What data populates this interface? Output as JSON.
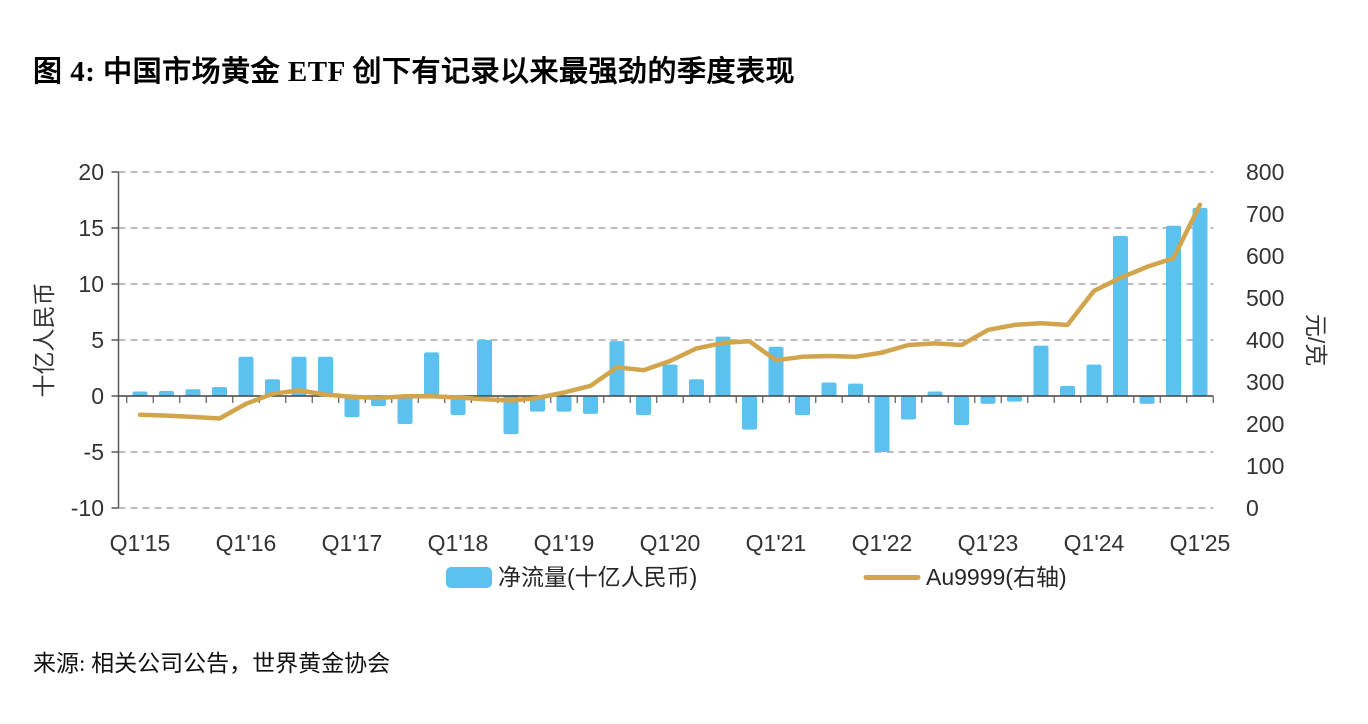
{
  "page": {
    "title": "图 4: 中国市场黄金 ETF 创下有记录以来最强劲的季度表现",
    "source": "来源: 相关公司公告，世界黄金协会"
  },
  "colors": {
    "bar": "#5BC2F0",
    "line": "#D2A54C",
    "grid": "#A6A6A6",
    "axis": "#595959",
    "zero_line": "#404040",
    "text": "#333333"
  },
  "chart_data": {
    "type": "bar+line",
    "title": "图 4: 中国市场黄金 ETF 创下有记录以来最强劲的季度表现",
    "categories": [
      "Q1'15",
      "Q2'15",
      "Q3'15",
      "Q4'15",
      "Q1'16",
      "Q2'16",
      "Q3'16",
      "Q4'16",
      "Q1'17",
      "Q2'17",
      "Q3'17",
      "Q4'17",
      "Q1'18",
      "Q2'18",
      "Q3'18",
      "Q4'18",
      "Q1'19",
      "Q2'19",
      "Q3'19",
      "Q4'19",
      "Q1'20",
      "Q2'20",
      "Q3'20",
      "Q4'20",
      "Q1'21",
      "Q2'21",
      "Q3'21",
      "Q4'21",
      "Q1'22",
      "Q2'22",
      "Q3'22",
      "Q4'22",
      "Q1'23",
      "Q2'23",
      "Q3'23",
      "Q4'23",
      "Q1'24",
      "Q2'24",
      "Q3'24",
      "Q4'24",
      "Q1'25"
    ],
    "series": [
      {
        "name": "净流量(十亿人民币)",
        "kind": "bar",
        "axis": "left",
        "color": "#5BC2F0",
        "values": [
          0.4,
          0.45,
          0.6,
          0.8,
          3.5,
          1.5,
          3.5,
          3.5,
          -1.9,
          -0.9,
          -2.5,
          3.9,
          -1.7,
          5.0,
          -3.4,
          -1.4,
          -1.4,
          -1.6,
          4.9,
          -1.7,
          2.8,
          1.5,
          5.3,
          -3.0,
          4.4,
          -1.7,
          1.2,
          1.1,
          -5.0,
          -2.1,
          0.4,
          -2.6,
          -0.7,
          -0.5,
          4.5,
          0.9,
          2.8,
          14.3,
          -0.7,
          15.2,
          16.8
        ]
      },
      {
        "name": "Au9999(右轴)",
        "kind": "line",
        "axis": "right",
        "color": "#D2A54C",
        "values": [
          222,
          220,
          217,
          213,
          248,
          272,
          280,
          270,
          265,
          262,
          266,
          266,
          263,
          259,
          256,
          262,
          275,
          291,
          335,
          328,
          350,
          380,
          393,
          397,
          352,
          360,
          362,
          360,
          370,
          388,
          392,
          388,
          424,
          436,
          440,
          436,
          517,
          548,
          574,
          595,
          722
        ]
      }
    ],
    "left_axis": {
      "title": "十亿人民币",
      "min": -10,
      "max": 20,
      "tick_step": 5,
      "tick_labels": [
        "20",
        "15",
        "10",
        "5",
        "0",
        "-5",
        "-10"
      ]
    },
    "right_axis": {
      "title": "元/克",
      "min": 0,
      "max": 800,
      "tick_step": 100,
      "tick_labels": [
        "800",
        "700",
        "600",
        "500",
        "400",
        "300",
        "200",
        "100",
        "0"
      ]
    },
    "x_axis": {
      "year_labels": [
        "Q1'15",
        "Q1'16",
        "Q1'17",
        "Q1'18",
        "Q1'19",
        "Q1'20",
        "Q1'21",
        "Q1'22",
        "Q1'23",
        "Q1'24",
        "Q1'25"
      ]
    },
    "legend_position": "bottom",
    "grid": "horizontal-dashed"
  }
}
